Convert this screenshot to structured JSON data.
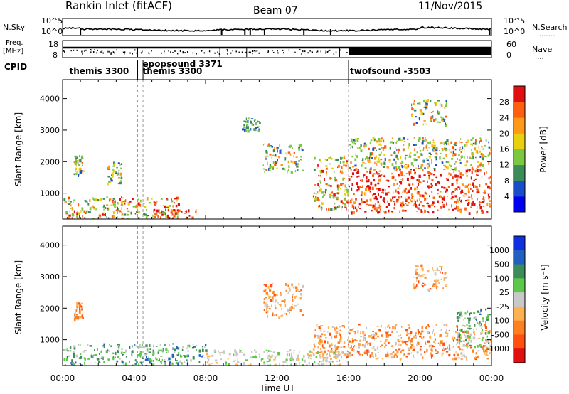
{
  "header": {
    "station": "Rankin Inlet (fitACF)",
    "beam": "Beam 07",
    "date": "11/Nov/2015"
  },
  "noise_panel": {
    "left_label": "N.Sky",
    "right_label": "N.Search",
    "right_label_dots": ".......",
    "left_ticks": [
      "10^5",
      "10^0"
    ],
    "right_ticks": [
      "10^5",
      "10^0"
    ]
  },
  "freq_panel": {
    "left_label_1": "Freq.",
    "left_label_2": "[MHz]",
    "left_ticks": [
      "18",
      "8"
    ],
    "right_label": "Nave",
    "right_label_dots": "....",
    "right_ticks": [
      "60",
      "0"
    ]
  },
  "cpid": {
    "label": "CPID",
    "programs": [
      {
        "name": "themis 3300",
        "start_hour": 0.3
      },
      {
        "name": "epopsound 3371",
        "start_hour": 4.4
      },
      {
        "name": "themis 3300",
        "start_hour": 4.4
      },
      {
        "name": "twofsound -3503",
        "start_hour": 16.0
      }
    ],
    "boundaries_hour": [
      4.2,
      4.5,
      16.0
    ]
  },
  "chart_data": [
    {
      "type": "heatmap",
      "name": "Power",
      "xlabel": "",
      "ylabel": "Slant Range [km]",
      "xlim_hours": [
        0,
        24
      ],
      "ylim_km": [
        180,
        4600
      ],
      "y_ticks": [
        "1000",
        "2000",
        "3000",
        "4000"
      ],
      "colorbar": {
        "label": "Power [dB]",
        "tick_labels": [
          "4",
          "8",
          "12",
          "16",
          "20",
          "24",
          "28"
        ],
        "colors": [
          "#0000f0",
          "#1a4ec8",
          "#3c8c5a",
          "#7ac840",
          "#e8d010",
          "#ff9a18",
          "#ff6010",
          "#e01010"
        ]
      },
      "echo_regions": [
        {
          "t0": 0.0,
          "t1": 6.5,
          "r0": 200,
          "r1": 900,
          "level": "medium-high"
        },
        {
          "t0": 0.6,
          "t1": 1.1,
          "r0": 1600,
          "r1": 2200,
          "level": "medium"
        },
        {
          "t0": 2.5,
          "t1": 3.3,
          "r0": 1300,
          "r1": 2000,
          "level": "medium"
        },
        {
          "t0": 5.0,
          "t1": 7.5,
          "r0": 200,
          "r1": 500,
          "level": "high"
        },
        {
          "t0": 10.0,
          "t1": 11.0,
          "r0": 3000,
          "r1": 3400,
          "level": "low"
        },
        {
          "t0": 11.2,
          "t1": 13.4,
          "r0": 1700,
          "r1": 2600,
          "level": "medium"
        },
        {
          "t0": 14.0,
          "t1": 16.0,
          "r0": 500,
          "r1": 2200,
          "level": "medium-high"
        },
        {
          "t0": 16.0,
          "t1": 24.0,
          "r0": 400,
          "r1": 1800,
          "level": "high"
        },
        {
          "t0": 16.0,
          "t1": 24.0,
          "r0": 1800,
          "r1": 2800,
          "level": "medium"
        },
        {
          "t0": 19.5,
          "t1": 21.5,
          "r0": 3200,
          "r1": 4000,
          "level": "medium"
        }
      ]
    },
    {
      "type": "heatmap",
      "name": "Velocity",
      "xlabel": "Time UT",
      "ylabel": "Slant Range [km]",
      "xlim_hours": [
        0,
        24
      ],
      "ylim_km": [
        180,
        4600
      ],
      "x_ticks": [
        "00:00",
        "04:00",
        "08:00",
        "12:00",
        "16:00",
        "20:00",
        "00:00"
      ],
      "y_ticks": [
        "1000",
        "2000",
        "3000",
        "4000"
      ],
      "colorbar": {
        "label": "Velocity [m s⁻¹]",
        "tick_labels": [
          "1000",
          "500",
          "100",
          "25",
          "-25",
          "-100",
          "-500",
          "-1000"
        ],
        "colors": [
          "#1030e0",
          "#2060c0",
          "#3c8c5a",
          "#5cc848",
          "#c8c8c8",
          "#ffb050",
          "#ff8020",
          "#ff5010",
          "#e01010"
        ]
      },
      "echo_regions": [
        {
          "t0": 0.0,
          "t1": 8.0,
          "r0": 200,
          "r1": 900,
          "velocity": "positive"
        },
        {
          "t0": 0.6,
          "t1": 1.1,
          "r0": 1600,
          "r1": 2200,
          "velocity": "negative"
        },
        {
          "t0": 8.0,
          "t1": 16.0,
          "r0": 200,
          "r1": 700,
          "velocity": "near-zero"
        },
        {
          "t0": 11.2,
          "t1": 13.4,
          "r0": 1700,
          "r1": 2800,
          "velocity": "negative"
        },
        {
          "t0": 14.0,
          "t1": 24.0,
          "r0": 400,
          "r1": 1500,
          "velocity": "negative"
        },
        {
          "t0": 19.5,
          "t1": 21.5,
          "r0": 2600,
          "r1": 3400,
          "velocity": "negative"
        },
        {
          "t0": 22.0,
          "t1": 24.0,
          "r0": 800,
          "r1": 2000,
          "velocity": "positive"
        }
      ]
    }
  ]
}
